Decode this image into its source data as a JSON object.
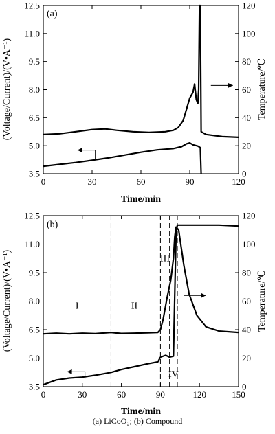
{
  "caption": "(a) LiCoO₂; (b) Compound",
  "chart_data": [
    {
      "type": "line",
      "panel_label": "(a)",
      "xlabel": "Time/min",
      "ylabel": "(Voltage/Current)/(V•A⁻¹)",
      "y2label": "Temperature/℃",
      "xlim": [
        0,
        120
      ],
      "ylim": [
        3.5,
        12.5
      ],
      "y2lim": [
        0,
        120
      ],
      "x_ticks": [
        0,
        30,
        60,
        90,
        120
      ],
      "y_ticks": [
        "3.5",
        "5.0",
        "6.5",
        "8.0",
        "9.5",
        "11.0",
        "12.5"
      ],
      "y2_ticks": [
        0,
        20,
        40,
        60,
        80,
        100,
        120
      ],
      "series": [
        {
          "axis": "left",
          "points": [
            [
              0,
              3.9
            ],
            [
              10,
              4.0
            ],
            [
              20,
              4.1
            ],
            [
              30,
              4.22
            ],
            [
              40,
              4.35
            ],
            [
              50,
              4.5
            ],
            [
              60,
              4.65
            ],
            [
              70,
              4.78
            ],
            [
              80,
              4.85
            ],
            [
              85,
              4.95
            ],
            [
              88,
              5.1
            ],
            [
              90,
              5.15
            ],
            [
              92,
              5.05
            ],
            [
              95,
              4.98
            ],
            [
              96.5,
              4.9
            ],
            [
              97,
              3.5
            ]
          ]
        },
        {
          "axis": "right",
          "points": [
            [
              0,
              28
            ],
            [
              10,
              28.5
            ],
            [
              20,
              30
            ],
            [
              30,
              31.5
            ],
            [
              38,
              32
            ],
            [
              45,
              31
            ],
            [
              55,
              30
            ],
            [
              65,
              29.5
            ],
            [
              75,
              30
            ],
            [
              80,
              31
            ],
            [
              83,
              33
            ],
            [
              86,
              38
            ],
            [
              88,
              46
            ],
            [
              90,
              54
            ],
            [
              92,
              58
            ],
            [
              93,
              64
            ],
            [
              94,
              53
            ],
            [
              95,
              50
            ],
            [
              95.5,
              60
            ],
            [
              96,
              120
            ],
            [
              96.5,
              120
            ],
            [
              97,
              30
            ],
            [
              100,
              28
            ],
            [
              110,
              26.5
            ],
            [
              120,
              26
            ]
          ]
        }
      ],
      "annotations": [
        {
          "type": "arrow",
          "direction": "left",
          "points_to_axis": "left"
        },
        {
          "type": "arrow",
          "direction": "right",
          "points_to_axis": "right"
        }
      ]
    },
    {
      "type": "line",
      "panel_label": "(b)",
      "xlabel": "Time/min",
      "ylabel": "(Voltage/Current)/(V•A⁻¹)",
      "y2label": "Temperature/℃",
      "xlim": [
        0,
        150
      ],
      "ylim": [
        3.5,
        12.5
      ],
      "y2lim": [
        0,
        120
      ],
      "x_ticks": [
        0,
        30,
        60,
        90,
        120,
        150
      ],
      "y_ticks": [
        "3.5",
        "5.0",
        "6.5",
        "8.0",
        "9.5",
        "11.0",
        "12.5"
      ],
      "y2_ticks": [
        0,
        20,
        40,
        60,
        80,
        100,
        120
      ],
      "vlines": [
        52,
        90,
        97,
        103
      ],
      "regions": [
        {
          "label": "I",
          "x": 26,
          "y": 7.6
        },
        {
          "label": "II",
          "x": 70,
          "y": 7.6
        },
        {
          "label": "III",
          "x": 93.5,
          "y": 10.1
        },
        {
          "label": "IV",
          "x": 100,
          "y": 4.0
        }
      ],
      "series": [
        {
          "axis": "left",
          "points": [
            [
              0,
              3.6
            ],
            [
              10,
              3.85
            ],
            [
              20,
              3.95
            ],
            [
              30,
              4.0
            ],
            [
              40,
              4.1
            ],
            [
              52,
              4.25
            ],
            [
              60,
              4.4
            ],
            [
              70,
              4.55
            ],
            [
              80,
              4.7
            ],
            [
              88,
              4.8
            ],
            [
              90,
              5.05
            ],
            [
              94,
              5.15
            ],
            [
              97,
              5.05
            ],
            [
              100,
              5.1
            ],
            [
              102,
              11.5
            ],
            [
              103,
              12.0
            ],
            [
              106,
              12.0
            ],
            [
              120,
              12.0
            ],
            [
              135,
              12.0
            ],
            [
              150,
              11.95
            ]
          ]
        },
        {
          "axis": "right",
          "points": [
            [
              0,
              37
            ],
            [
              10,
              37.5
            ],
            [
              20,
              37
            ],
            [
              30,
              37.5
            ],
            [
              40,
              37.2
            ],
            [
              52,
              38
            ],
            [
              60,
              37.3
            ],
            [
              70,
              37.5
            ],
            [
              80,
              37.8
            ],
            [
              88,
              38
            ],
            [
              90,
              40
            ],
            [
              92,
              47
            ],
            [
              95,
              62
            ],
            [
              98,
              75
            ],
            [
              100,
              90
            ],
            [
              101,
              105
            ],
            [
              102,
              112
            ],
            [
              104,
              110
            ],
            [
              108,
              85
            ],
            [
              112,
              65
            ],
            [
              118,
              50
            ],
            [
              125,
              42
            ],
            [
              135,
              39
            ],
            [
              150,
              38
            ]
          ]
        }
      ],
      "annotations": [
        {
          "type": "arrow",
          "direction": "left",
          "points_to_axis": "left"
        },
        {
          "type": "arrow",
          "direction": "right",
          "points_to_axis": "right"
        }
      ]
    }
  ]
}
